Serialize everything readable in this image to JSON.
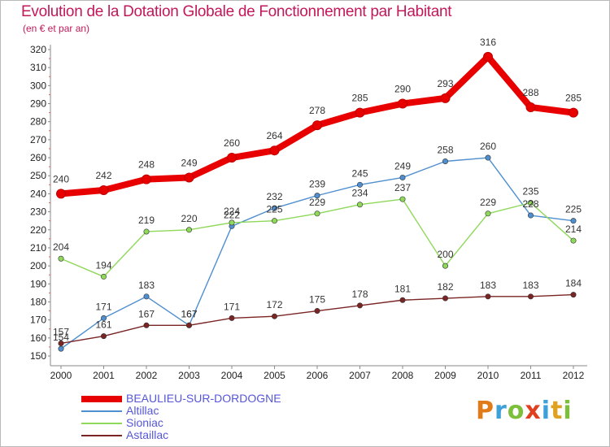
{
  "header": {
    "title": "Evolution de la Dotation Globale de Fonctionnement par Habitant",
    "subtitle": "(en € et par an)"
  },
  "brand": {
    "text": "Proxiti",
    "colors": [
      "#e07b1a",
      "#3da0d8",
      "#7cbf3a",
      "#e04020",
      "#3da0d8",
      "#e0a020",
      "#7cbf3a"
    ]
  },
  "chart_data": {
    "type": "line",
    "title": "Evolution de la Dotation Globale de Fonctionnement par Habitant",
    "subtitle": "(en € et par an)",
    "xlabel": "",
    "ylabel": "",
    "ylim": [
      150,
      320
    ],
    "ytick_step": 10,
    "grid": false,
    "legend_position": "bottom-left",
    "x": [
      "2000",
      "2001",
      "2002",
      "2003",
      "2004",
      "2005",
      "2006",
      "2007",
      "2008",
      "2009",
      "2010",
      "2011",
      "2012"
    ],
    "series": [
      {
        "name": "BEAULIEU-SUR-DORDOGNE",
        "color": "#e80000",
        "emphasis": true,
        "values": [
          240,
          242,
          248,
          249,
          260,
          264,
          278,
          285,
          290,
          293,
          316,
          288,
          285
        ]
      },
      {
        "name": "Altillac",
        "color": "#4f8fcf",
        "emphasis": false,
        "values": [
          154,
          171,
          183,
          167,
          222,
          232,
          239,
          245,
          249,
          258,
          260,
          228,
          225
        ]
      },
      {
        "name": "Sioniac",
        "color": "#8ed85a",
        "emphasis": false,
        "values": [
          204,
          194,
          219,
          220,
          224,
          225,
          229,
          234,
          237,
          200,
          229,
          235,
          214
        ]
      },
      {
        "name": "Astaillac",
        "color": "#7a2424",
        "emphasis": false,
        "values": [
          157,
          161,
          167,
          167,
          171,
          172,
          175,
          178,
          181,
          182,
          183,
          183,
          184
        ]
      }
    ]
  }
}
